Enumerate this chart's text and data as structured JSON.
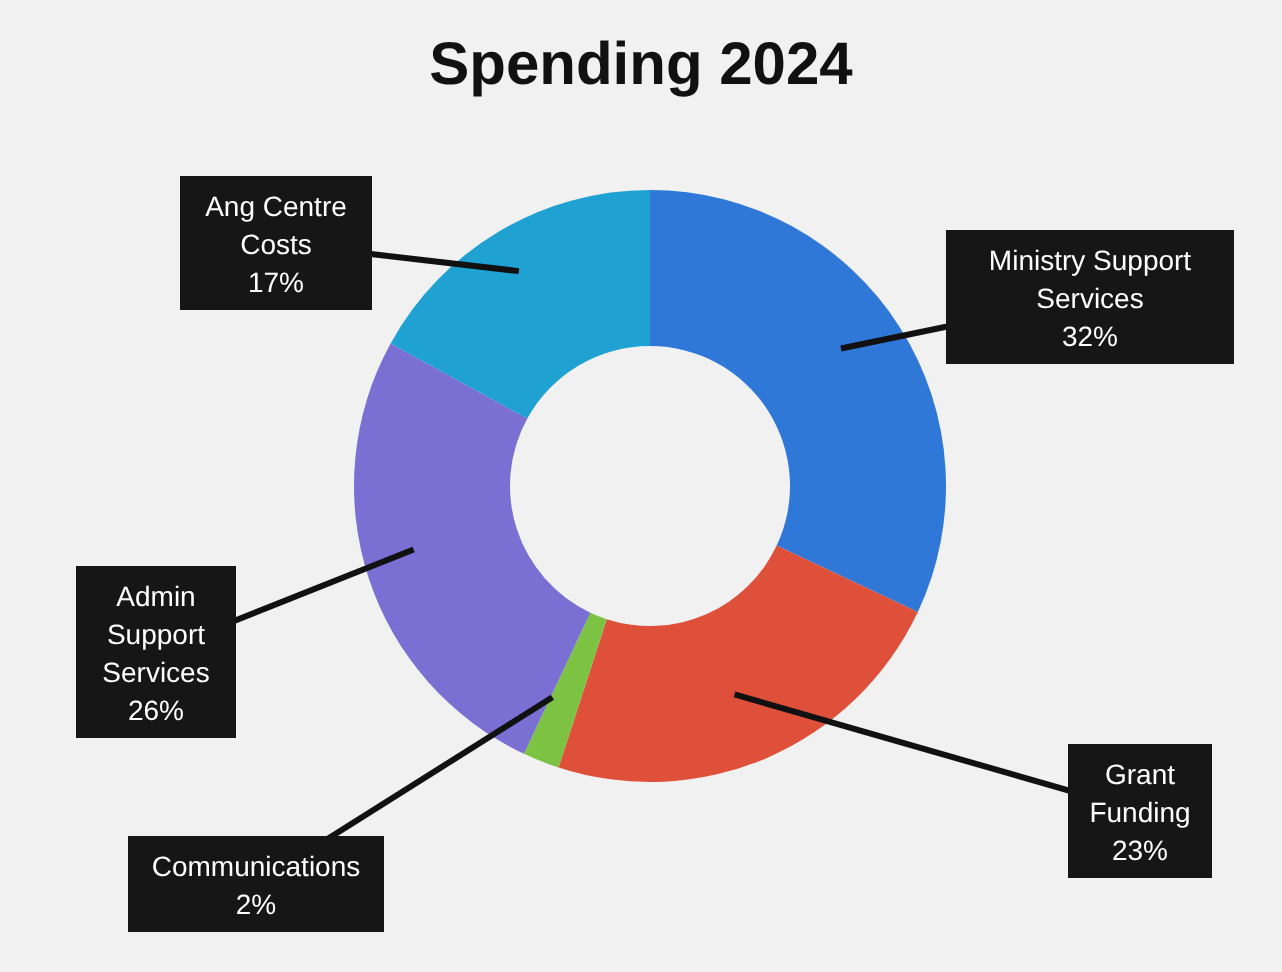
{
  "chart_data": {
    "type": "donut",
    "title": "Spending 2024",
    "categories": [
      "Ministry Support Services",
      "Grant Funding",
      "Communications",
      "Admin Support Services",
      "Ang Centre Costs"
    ],
    "values": [
      32,
      23,
      2,
      26,
      17
    ],
    "colors": [
      "#2f78d8",
      "#df503a",
      "#7cc243",
      "#7a6fd2",
      "#1fa2d2"
    ],
    "value_labels": [
      "32%",
      "23%",
      "2%",
      "26%",
      "17%"
    ]
  }
}
